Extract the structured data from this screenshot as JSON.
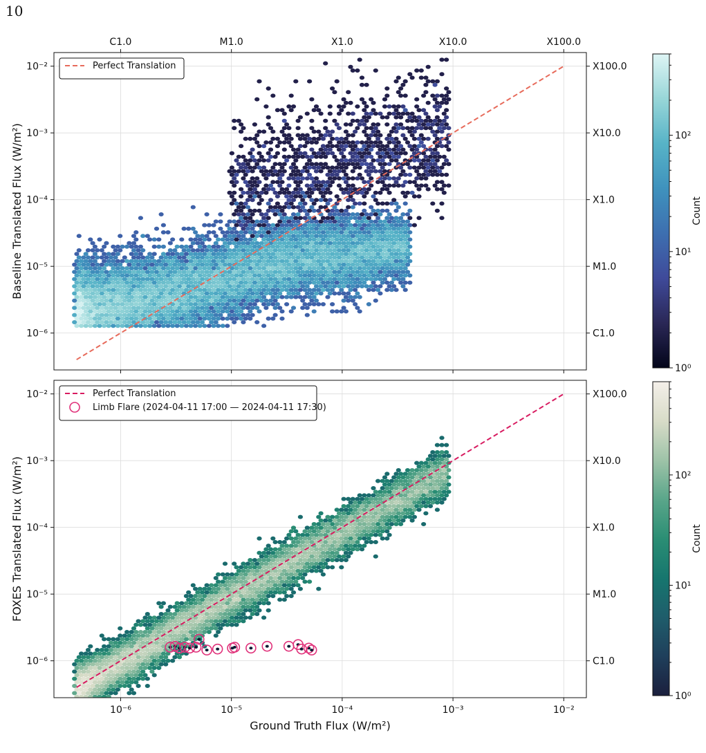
{
  "page_number": "10",
  "chart_data": [
    {
      "id": "baseline",
      "type": "scatter",
      "render": "hexbin-density",
      "xscale": "log",
      "yscale": "log",
      "xlim": [
        2.5e-07,
        0.016
      ],
      "ylim": [
        2.8e-07,
        0.016
      ],
      "xticks": [
        1e-06,
        1e-05,
        0.0001,
        0.001,
        0.01
      ],
      "xtick_labels": [
        "",
        "",
        "",
        "",
        ""
      ],
      "yticks": [
        1e-06,
        1e-05,
        0.0001,
        0.001,
        0.01
      ],
      "ytick_labels": [
        "10⁻⁶",
        "10⁻⁵",
        "10⁻⁴",
        "10⁻³",
        "10⁻²"
      ],
      "top_ticks": [
        1e-06,
        1e-05,
        0.0001,
        0.001,
        0.01
      ],
      "top_tick_labels": [
        "C1.0",
        "M1.0",
        "X1.0",
        "X10.0",
        "X100.0"
      ],
      "right_ticks": [
        1e-06,
        1e-05,
        0.0001,
        0.001,
        0.01
      ],
      "right_tick_labels": [
        "C1.0",
        "M1.0",
        "X1.0",
        "X10.0",
        "X100.0"
      ],
      "ylabel": "Baseline Translated Flux (W/m²)",
      "xlabel": "",
      "grid": true,
      "legend_position": "upper-left",
      "legend": [
        {
          "label": "Perfect Translation",
          "style": "dashed-line",
          "color": "#e76a5a"
        }
      ],
      "series": [
        {
          "name": "Perfect Translation",
          "x": [
            4e-07,
            0.01
          ],
          "y": [
            4e-07,
            0.01
          ],
          "color": "#e76a5a",
          "style": "dashed"
        }
      ],
      "density_clusters": [
        {
          "x": [
            4e-07,
            0.0004
          ],
          "y_at_x": [
            [
              4e-07,
              1.7e-06
            ],
            [
              1e-06,
              2.5e-06
            ],
            [
              3e-06,
              4e-06
            ],
            [
              1e-05,
              7e-06
            ],
            [
              3e-05,
              1.2e-05
            ],
            [
              0.0001,
              1.4e-05
            ],
            [
              0.0004,
              2e-05
            ]
          ],
          "y_spread_dex": 0.35,
          "peak_count": 500
        },
        {
          "x": [
            1e-05,
            0.0009
          ],
          "y_at_x": [
            [
              1e-05,
              0.0001
            ],
            [
              3e-05,
              0.00015
            ],
            [
              0.0001,
              0.0003
            ],
            [
              0.0003,
              0.0005
            ],
            [
              0.0009,
              0.001
            ]
          ],
          "y_spread_dex": 0.55,
          "peak_count": 3
        }
      ],
      "colorbar": {
        "label": "Count",
        "scale": "log",
        "range": [
          1,
          500
        ],
        "ticks": [
          1,
          10,
          100
        ],
        "tick_labels": [
          "10⁰",
          "10¹",
          "10²"
        ],
        "colormap": [
          "#03051a",
          "#2a2756",
          "#3f4a9a",
          "#3d6fb0",
          "#3f92bd",
          "#57b3c7",
          "#98d6d8",
          "#def5f5"
        ]
      }
    },
    {
      "id": "foxes",
      "type": "scatter",
      "render": "hexbin-density",
      "xscale": "log",
      "yscale": "log",
      "xlim": [
        2.5e-07,
        0.016
      ],
      "ylim": [
        2.8e-07,
        0.016
      ],
      "xticks": [
        1e-06,
        1e-05,
        0.0001,
        0.001,
        0.01
      ],
      "xtick_labels": [
        "10⁻⁶",
        "10⁻⁵",
        "10⁻⁴",
        "10⁻³",
        "10⁻²"
      ],
      "yticks": [
        1e-06,
        1e-05,
        0.0001,
        0.001,
        0.01
      ],
      "ytick_labels": [
        "10⁻⁶",
        "10⁻⁵",
        "10⁻⁴",
        "10⁻³",
        "10⁻²"
      ],
      "right_ticks": [
        1e-06,
        1e-05,
        0.0001,
        0.001,
        0.01
      ],
      "right_tick_labels": [
        "C1.0",
        "M1.0",
        "X1.0",
        "X10.0",
        "X100.0"
      ],
      "ylabel": "FOXES Translated Flux (W/m²)",
      "xlabel": "Ground Truth Flux (W/m²)",
      "grid": true,
      "legend_position": "upper-left",
      "legend": [
        {
          "label": "Perfect Translation",
          "style": "dashed-line",
          "color": "#d81b60"
        },
        {
          "label": "Limb Flare (2024-04-11 17:00 — 2024-04-11 17:30)",
          "style": "open-circle",
          "color": "#e0317a"
        }
      ],
      "series": [
        {
          "name": "Perfect Translation",
          "x": [
            4e-07,
            0.01
          ],
          "y": [
            4e-07,
            0.01
          ],
          "color": "#d81b60",
          "style": "dashed"
        },
        {
          "name": "Limb Flare (2024-04-11 17:00 — 2024-04-11 17:30)",
          "color": "#e0317a",
          "style": "open-circle",
          "x": [
            2.8e-06,
            3.1e-06,
            3.4e-06,
            3.8e-06,
            4.2e-06,
            4.8e-06,
            5.1e-06,
            6e-06,
            7.5e-06,
            1.02e-05,
            1.07e-05,
            1.5e-05,
            2.1e-05,
            3.3e-05,
            4e-05,
            4.3e-05,
            5e-05,
            5.3e-05
          ],
          "y": [
            1.6e-06,
            1.65e-06,
            1.55e-06,
            1.6e-06,
            1.55e-06,
            1.6e-06,
            2.1e-06,
            1.45e-06,
            1.5e-06,
            1.55e-06,
            1.6e-06,
            1.55e-06,
            1.65e-06,
            1.65e-06,
            1.75e-06,
            1.5e-06,
            1.55e-06,
            1.45e-06
          ]
        }
      ],
      "density_clusters": [
        {
          "x": [
            4e-07,
            0.0009
          ],
          "y_at_x": [
            [
              4e-07,
              3.8e-07
            ],
            [
              1e-06,
              9e-07
            ],
            [
              1e-05,
              9e-06
            ],
            [
              0.0001,
              8.5e-05
            ],
            [
              0.0009,
              0.0007
            ]
          ],
          "y_spread_dex": 0.16,
          "peak_count": 700
        }
      ],
      "colorbar": {
        "label": "Count",
        "scale": "log",
        "range": [
          1,
          700
        ],
        "ticks": [
          1,
          10,
          100
        ],
        "tick_labels": [
          "10⁰",
          "10¹",
          "10²"
        ],
        "colormap": [
          "#1b1f3d",
          "#1f3f5b",
          "#1f5d6b",
          "#16766e",
          "#2b8e74",
          "#5aa68a",
          "#9ec3a8",
          "#d8dcc8",
          "#f4efe9"
        ]
      }
    }
  ]
}
